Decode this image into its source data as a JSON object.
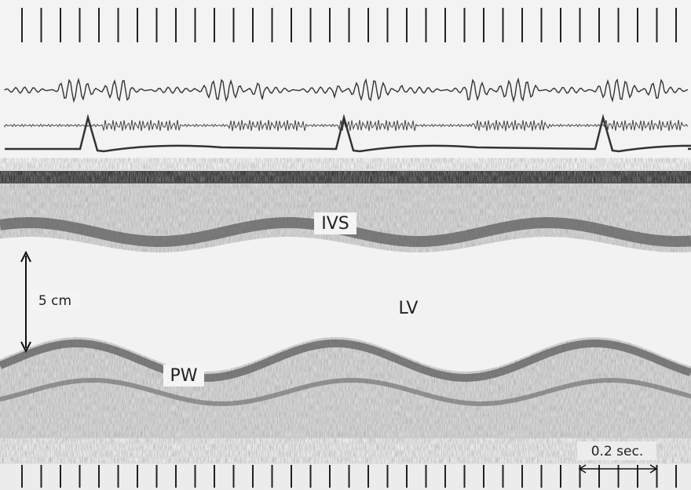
{
  "labels": {
    "ivs": "IVS",
    "lv": "LV",
    "pw": "PW",
    "depth_scale": "5 cm",
    "time_scale": "0.2 sec."
  }
}
